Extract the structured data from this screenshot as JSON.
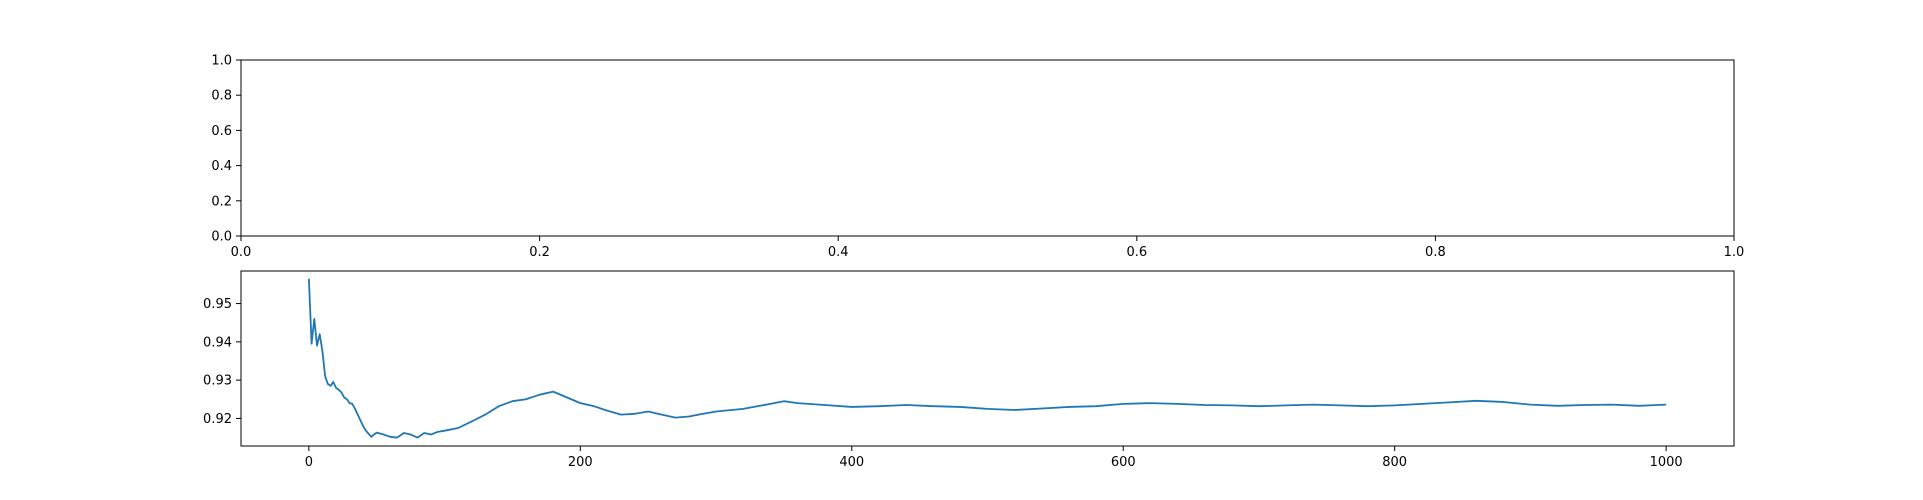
{
  "chart_data": [
    {
      "type": "line",
      "title": "",
      "xlabel": "",
      "ylabel": "",
      "xlim": [
        0,
        1
      ],
      "ylim": [
        0,
        1
      ],
      "x_ticks": [
        "0.0",
        "0.2",
        "0.4",
        "0.6",
        "0.8",
        "1.0"
      ],
      "y_ticks": [
        "0.0",
        "0.2",
        "0.4",
        "0.6",
        "0.8",
        "1.0"
      ],
      "grid": false,
      "series": []
    },
    {
      "type": "line",
      "title": "",
      "xlabel": "",
      "ylabel": "",
      "xlim": [
        -50,
        1050
      ],
      "ylim": [
        0.9128,
        0.9585
      ],
      "x_ticks": [
        "0",
        "200",
        "400",
        "600",
        "800",
        "1000"
      ],
      "y_ticks": [
        "0.92",
        "0.93",
        "0.94",
        "0.95"
      ],
      "grid": false,
      "colors": {
        "line": "#1f77b4"
      },
      "series": [
        {
          "x": [
            0,
            2,
            4,
            6,
            8,
            10,
            12,
            14,
            16,
            18,
            20,
            22,
            24,
            26,
            28,
            30,
            32,
            34,
            36,
            38,
            40,
            42,
            44,
            46,
            48,
            50,
            55,
            60,
            65,
            70,
            75,
            80,
            85,
            90,
            95,
            100,
            110,
            120,
            130,
            140,
            150,
            160,
            170,
            180,
            190,
            200,
            210,
            220,
            230,
            240,
            250,
            260,
            270,
            280,
            290,
            300,
            320,
            340,
            350,
            360,
            380,
            400,
            420,
            440,
            460,
            480,
            500,
            520,
            540,
            560,
            580,
            600,
            620,
            640,
            660,
            680,
            700,
            720,
            740,
            760,
            780,
            800,
            820,
            840,
            860,
            880,
            900,
            920,
            940,
            960,
            980,
            1000
          ],
          "y": [
            0.9565,
            0.9395,
            0.946,
            0.939,
            0.942,
            0.9375,
            0.931,
            0.929,
            0.9285,
            0.9295,
            0.928,
            0.9275,
            0.9268,
            0.9255,
            0.925,
            0.924,
            0.9238,
            0.9225,
            0.921,
            0.9195,
            0.918,
            0.9168,
            0.916,
            0.9152,
            0.9158,
            0.9163,
            0.9158,
            0.9152,
            0.915,
            0.9162,
            0.9158,
            0.915,
            0.9162,
            0.9158,
            0.9165,
            0.9168,
            0.9175,
            0.9192,
            0.921,
            0.9232,
            0.9245,
            0.925,
            0.9262,
            0.927,
            0.9255,
            0.924,
            0.9232,
            0.922,
            0.921,
            0.9212,
            0.9218,
            0.921,
            0.9202,
            0.9205,
            0.9212,
            0.9218,
            0.9225,
            0.9238,
            0.9245,
            0.924,
            0.9235,
            0.923,
            0.9232,
            0.9235,
            0.9232,
            0.923,
            0.9225,
            0.9222,
            0.9226,
            0.923,
            0.9232,
            0.9238,
            0.924,
            0.9238,
            0.9235,
            0.9234,
            0.9232,
            0.9234,
            0.9236,
            0.9234,
            0.9232,
            0.9234,
            0.9238,
            0.9242,
            0.9246,
            0.9243,
            0.9236,
            0.9233,
            0.9235,
            0.9236,
            0.9233,
            0.9236
          ]
        }
      ]
    }
  ]
}
